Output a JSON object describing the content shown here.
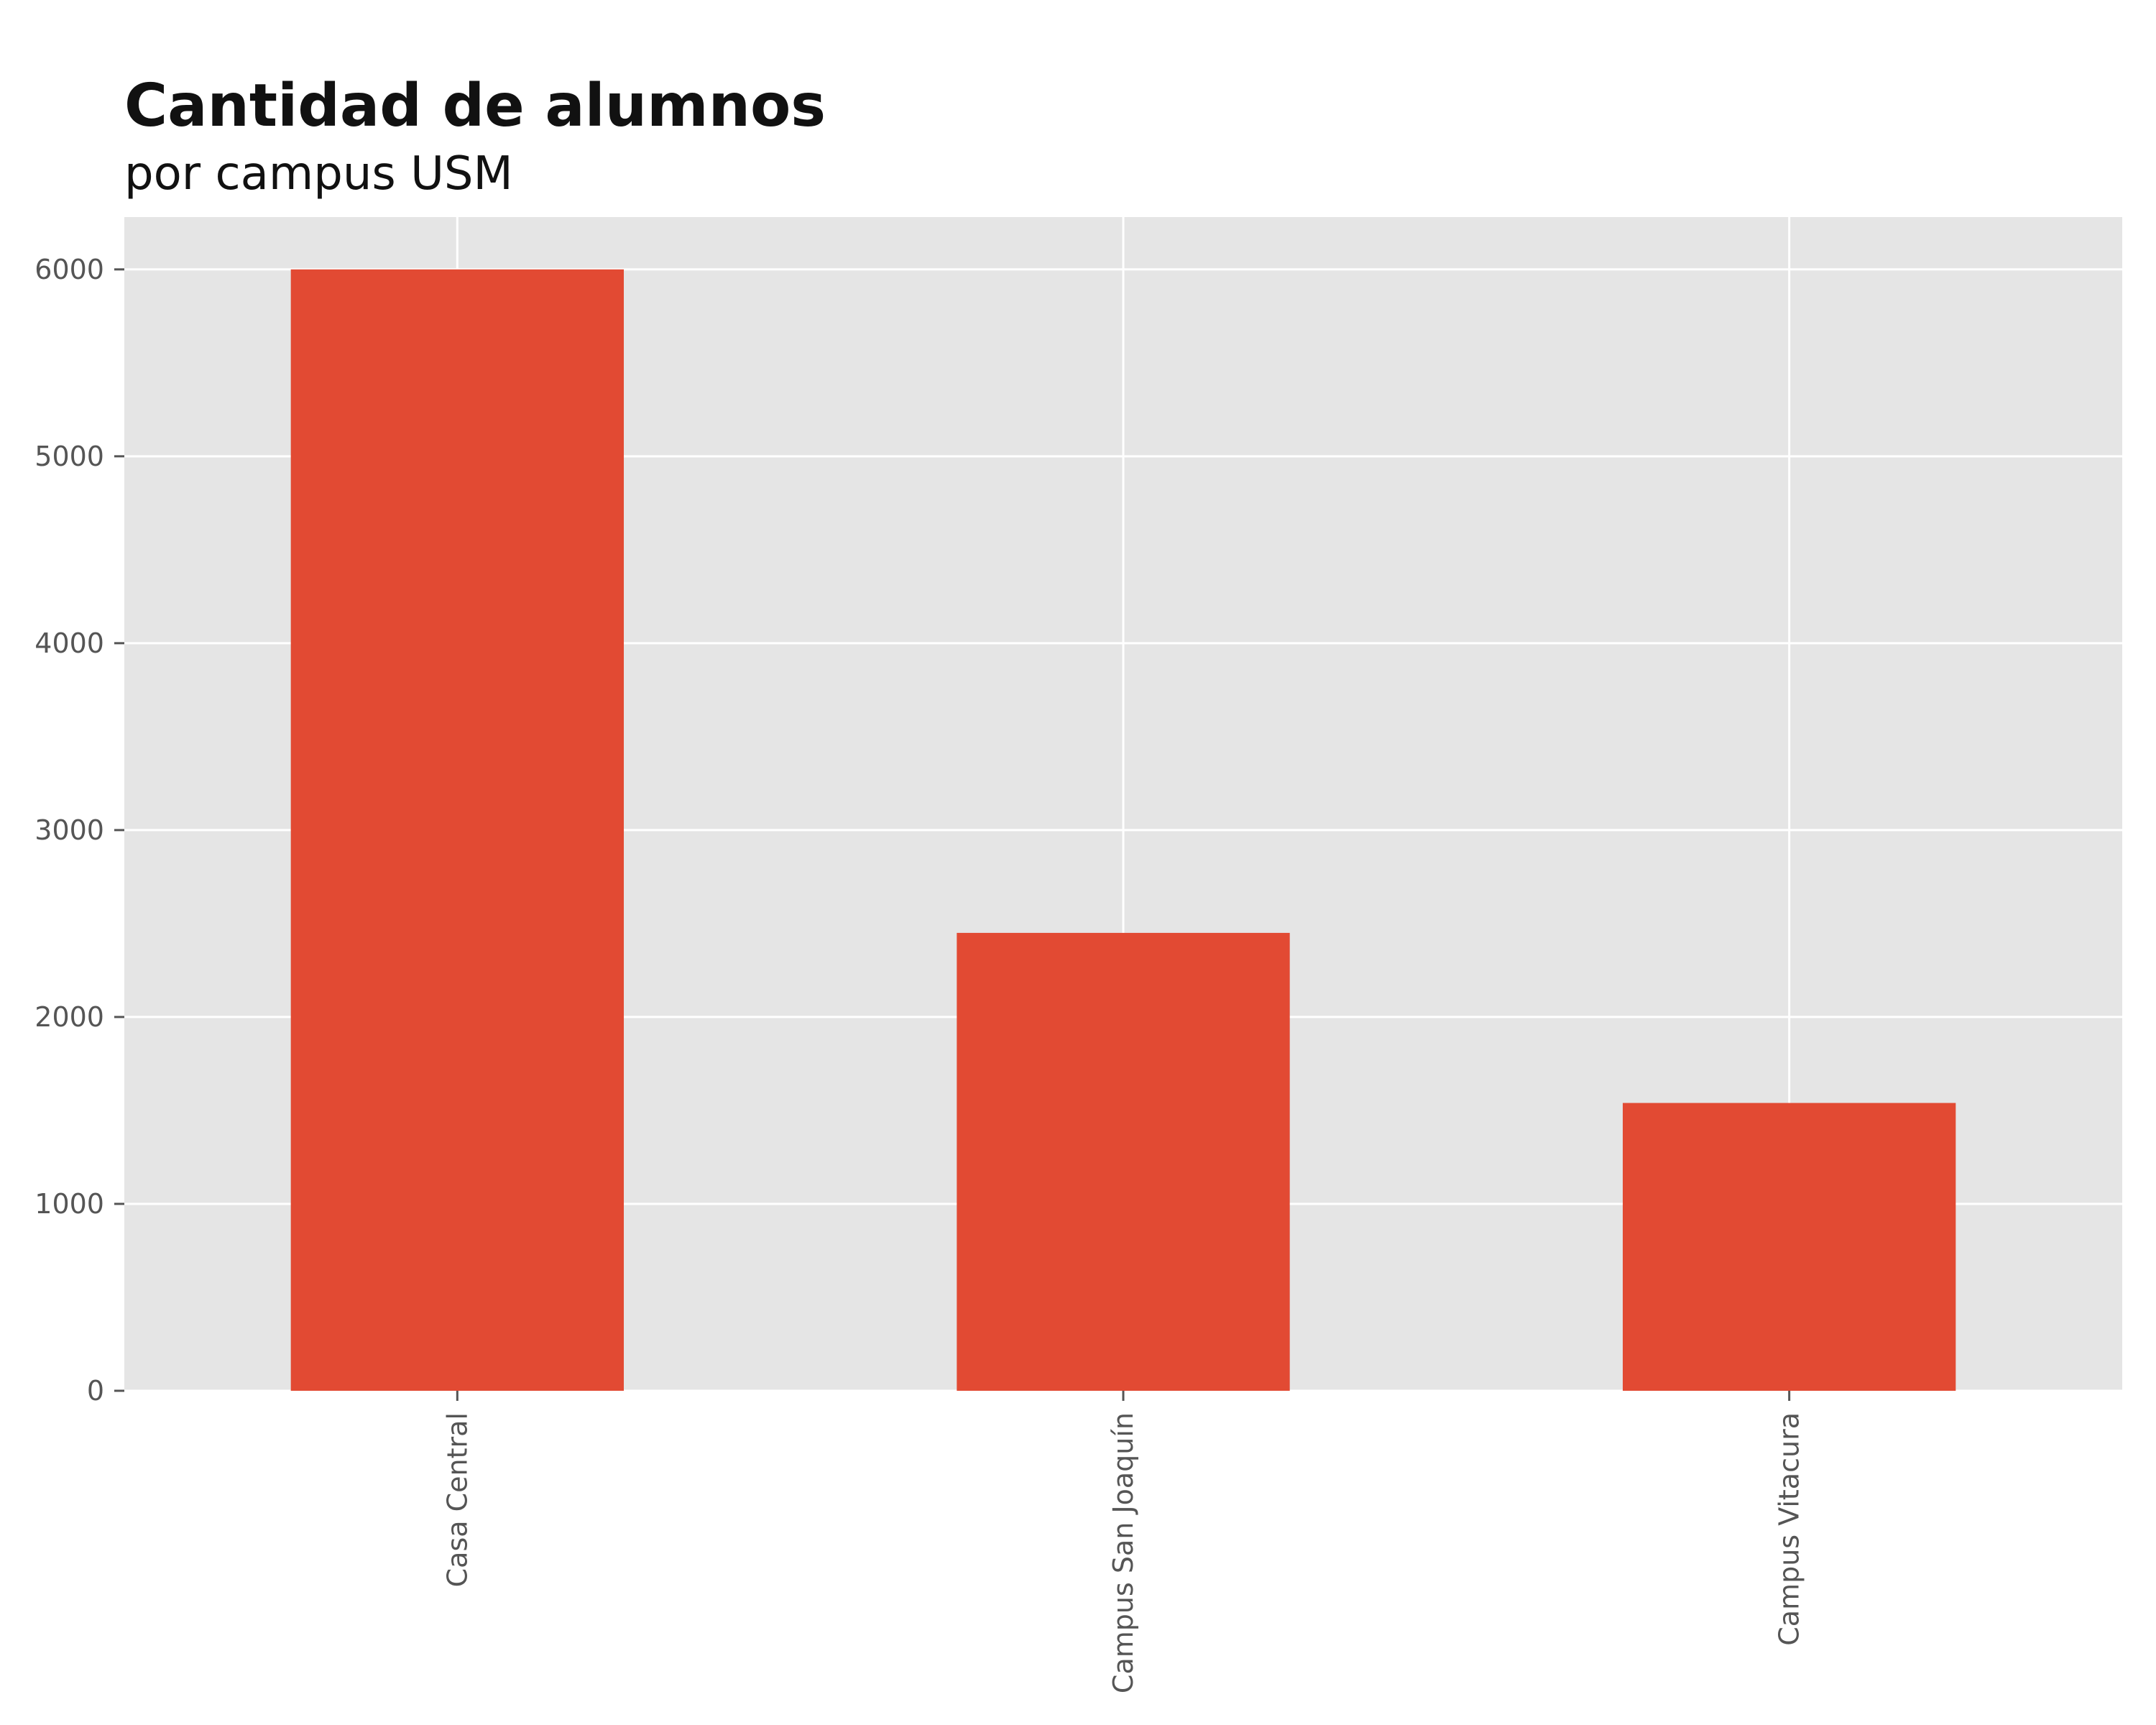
{
  "chart_data": {
    "type": "bar",
    "title": "Cantidad de alumnos",
    "subtitle": "por campus USM",
    "xlabel": "",
    "ylabel": "",
    "categories": [
      "Casa Central",
      "Campus San Joaquín",
      "Campus Vitacura"
    ],
    "values": [
      6000,
      2450,
      1540
    ],
    "ylim": [
      0,
      6280
    ],
    "yticks": [
      0,
      1000,
      2000,
      3000,
      4000,
      5000,
      6000
    ],
    "grid": true,
    "legend": "none",
    "colors": {
      "bar": "#e24a33",
      "plot_background": "#e5e5e5",
      "grid": "#ffffff",
      "tick_text": "#555555",
      "title_text": "#111111"
    }
  }
}
